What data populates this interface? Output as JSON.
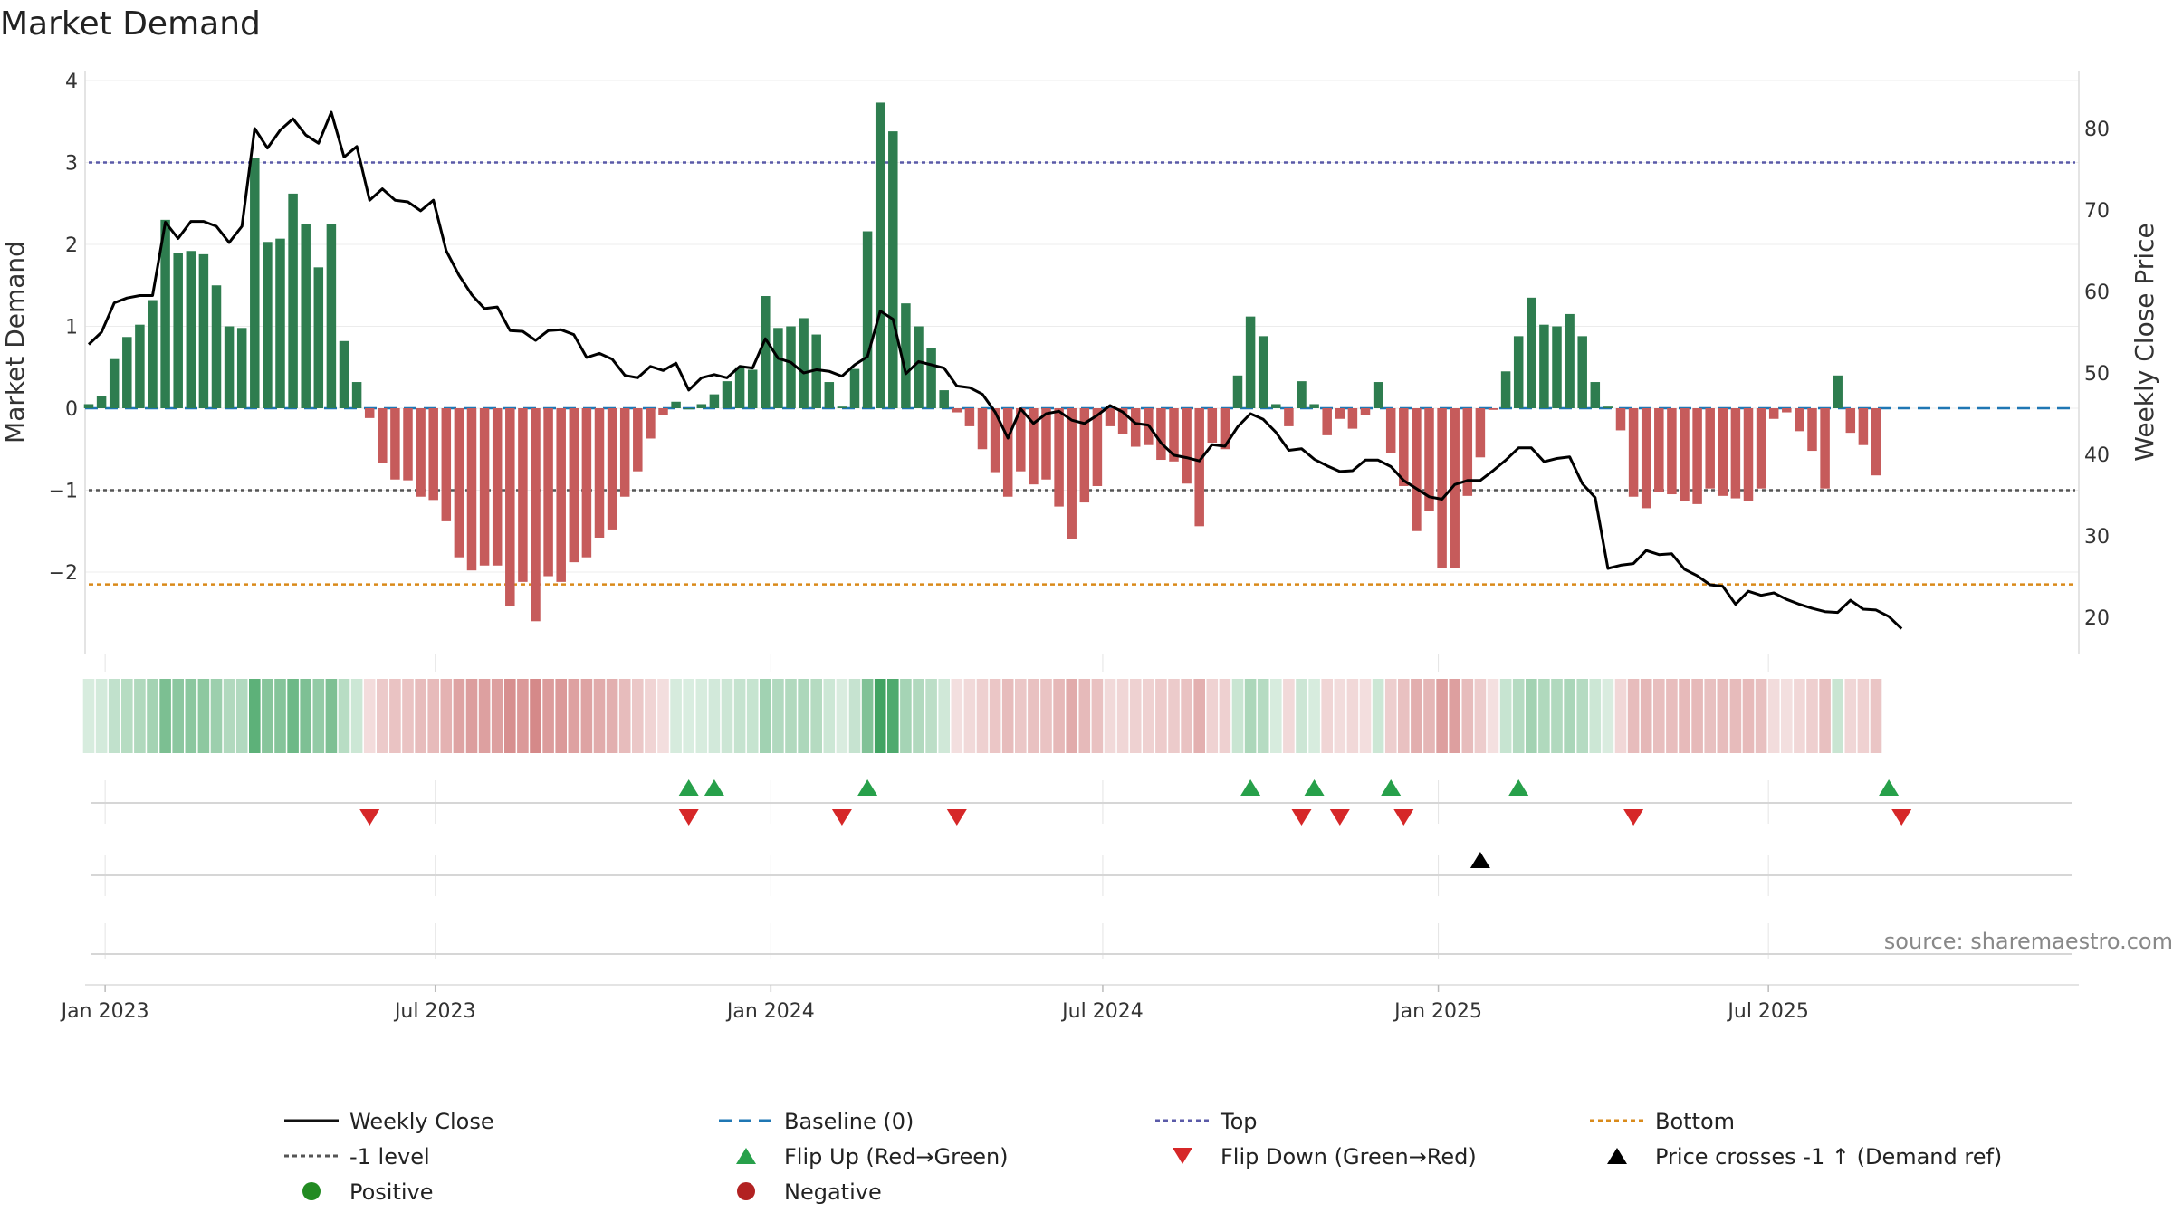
{
  "chart_data": {
    "type": "bar",
    "title": "Market Demand",
    "ylabel": "Market Demand",
    "y2label": "Weekly Close Price",
    "ylim": [
      -3,
      4
    ],
    "y2lim": [
      18,
      86
    ],
    "yticks": [
      4,
      3,
      2,
      1,
      0,
      -1,
      -2
    ],
    "y2ticks": [
      80,
      70,
      60,
      50,
      40,
      30,
      20
    ],
    "x_start": "2022-12-23",
    "x_step_days": 7,
    "date_ticks": [
      {
        "label": "Jan 2023",
        "date": "2023-01-01"
      },
      {
        "label": "Jul 2023",
        "date": "2023-07-01"
      },
      {
        "label": "Jan 2024",
        "date": "2024-01-01"
      },
      {
        "label": "Jul 2024",
        "date": "2024-07-01"
      },
      {
        "label": "Jan 2025",
        "date": "2025-01-01"
      },
      {
        "label": "Jul 2025",
        "date": "2025-07-01"
      }
    ],
    "series": [
      {
        "name": "Market Demand",
        "values": [
          0.05,
          0.15,
          0.6,
          0.87,
          1.02,
          1.32,
          2.3,
          1.9,
          1.92,
          1.88,
          1.5,
          1.0,
          0.98,
          3.05,
          2.03,
          2.07,
          2.62,
          2.25,
          1.72,
          2.25,
          0.82,
          0.32,
          -0.12,
          -0.67,
          -0.87,
          -0.88,
          -1.08,
          -1.12,
          -1.38,
          -1.82,
          -1.98,
          -1.92,
          -1.92,
          -2.42,
          -2.12,
          -2.6,
          -2.05,
          -2.12,
          -1.88,
          -1.82,
          -1.58,
          -1.48,
          -1.08,
          -0.77,
          -0.37,
          -0.08,
          0.08,
          0.0,
          0.05,
          0.17,
          0.33,
          0.5,
          0.47,
          1.37,
          0.98,
          1.0,
          1.1,
          0.9,
          0.32,
          0.02,
          0.48,
          2.16,
          3.73,
          3.38,
          1.28,
          1.0,
          0.73,
          0.22,
          -0.05,
          -0.22,
          -0.5,
          -0.78,
          -1.08,
          -0.77,
          -0.93,
          -0.87,
          -1.2,
          -1.6,
          -1.15,
          -0.95,
          -0.22,
          -0.32,
          -0.47,
          -0.45,
          -0.63,
          -0.65,
          -0.92,
          -1.44,
          -0.42,
          -0.5,
          0.4,
          1.12,
          0.88,
          0.05,
          -0.22,
          0.33,
          0.05,
          -0.33,
          -0.13,
          -0.25,
          -0.08,
          0.32,
          -0.55,
          -0.95,
          -1.5,
          -1.25,
          -1.95,
          -1.95,
          -1.07,
          -0.6,
          -0.02,
          0.45,
          0.88,
          1.35,
          1.02,
          1.0,
          1.15,
          0.88,
          0.32,
          0.02,
          -0.27,
          -1.08,
          -1.22,
          -1.02,
          -1.05,
          -1.13,
          -1.17,
          -0.98,
          -1.07,
          -1.1,
          -1.13,
          -0.98,
          -0.13,
          -0.05,
          -0.28,
          -0.52,
          -0.98,
          0.4,
          -0.3,
          -0.45,
          -0.82
        ]
      },
      {
        "name": "Weekly Close",
        "values": [
          53.5,
          55.0,
          58.6,
          59.2,
          59.5,
          59.5,
          68.5,
          66.5,
          68.6,
          68.6,
          68.0,
          66.0,
          68.0,
          80.0,
          77.6,
          79.8,
          81.2,
          79.2,
          78.2,
          82.0,
          76.5,
          77.8,
          71.2,
          72.6,
          71.2,
          71.0,
          69.9,
          71.2,
          65.0,
          62.0,
          59.6,
          57.9,
          58.1,
          55.2,
          55.1,
          54.0,
          55.2,
          55.3,
          54.7,
          51.9,
          52.4,
          51.7,
          49.7,
          49.4,
          50.8,
          50.3,
          51.2,
          47.9,
          49.4,
          49.8,
          49.4,
          50.8,
          50.6,
          54.2,
          51.8,
          51.3,
          50.0,
          50.4,
          50.2,
          49.6,
          51.0,
          52.0,
          57.6,
          56.6,
          49.9,
          51.4,
          51.0,
          50.6,
          48.4,
          48.2,
          47.4,
          45.2,
          42.0,
          45.6,
          43.8,
          45.0,
          45.3,
          44.2,
          43.8,
          44.8,
          46.0,
          45.2,
          43.8,
          43.6,
          41.4,
          39.9,
          39.6,
          39.2,
          41.2,
          41.0,
          43.4,
          45.0,
          44.3,
          42.7,
          40.5,
          40.7,
          39.4,
          38.6,
          37.9,
          38.0,
          39.3,
          39.3,
          38.5,
          36.8,
          35.8,
          34.8,
          34.5,
          36.3,
          36.8,
          36.8,
          38.0,
          39.3,
          40.8,
          40.8,
          39.1,
          39.5,
          39.7,
          36.4,
          34.7,
          26.0,
          26.4,
          26.6,
          28.2,
          27.7,
          27.8,
          25.9,
          25.1,
          24.0,
          23.8,
          21.6,
          23.2,
          22.7,
          23.0,
          22.2,
          21.6,
          21.1,
          20.7,
          20.6,
          22.1,
          21.0,
          20.9,
          20.1,
          18.6
        ]
      },
      {
        "name": "Baseline (0)",
        "values": [
          0
        ]
      },
      {
        "name": "Top",
        "values": [
          3.0
        ]
      },
      {
        "name": "-1 level",
        "values": [
          -1.0
        ]
      },
      {
        "name": "Bottom",
        "values": [
          -2.15
        ]
      }
    ],
    "flip_up_weeks": [
      47,
      49,
      61,
      91,
      96,
      102,
      112,
      141
    ],
    "flip_down_weeks": [
      22,
      47,
      59,
      68,
      95,
      98,
      103,
      121,
      142
    ],
    "price_cross_weeks": [
      109
    ],
    "colors": {
      "positive_bar": "#2e7d4f",
      "negative_bar": "#c65b5b",
      "price_line": "#000000",
      "baseline": "#1f77b4",
      "top": "#5a5aa8",
      "level_minus1": "#555555",
      "bottom": "#d98a1a",
      "flip_up": "#27a04a",
      "flip_down": "#d62728",
      "cross": "#000000",
      "legend_positive": "#228b22",
      "legend_negative": "#b22222"
    }
  },
  "source": "source: sharemaestro.com",
  "legend": [
    {
      "label": "Weekly Close",
      "kind": "solid-line",
      "color": "#111111"
    },
    {
      "label": "Baseline (0)",
      "kind": "dash-line",
      "color": "#1f77b4"
    },
    {
      "label": "Top",
      "kind": "dot-line",
      "color": "#5a5aa8"
    },
    {
      "label": "Bottom",
      "kind": "dot-line",
      "color": "#d98a1a"
    },
    {
      "label": "-1 level",
      "kind": "dot-line",
      "color": "#555555"
    },
    {
      "label": "Flip Up (Red→Green)",
      "kind": "tri-up",
      "color": "#27a04a"
    },
    {
      "label": "Flip Down (Green→Red)",
      "kind": "tri-down",
      "color": "#d62728"
    },
    {
      "label": "Price crosses -1 ↑ (Demand ref)",
      "kind": "tri-up",
      "color": "#000000"
    },
    {
      "label": "Positive",
      "kind": "circle",
      "color": "#228b22"
    },
    {
      "label": "Negative",
      "kind": "circle",
      "color": "#b22222"
    }
  ]
}
